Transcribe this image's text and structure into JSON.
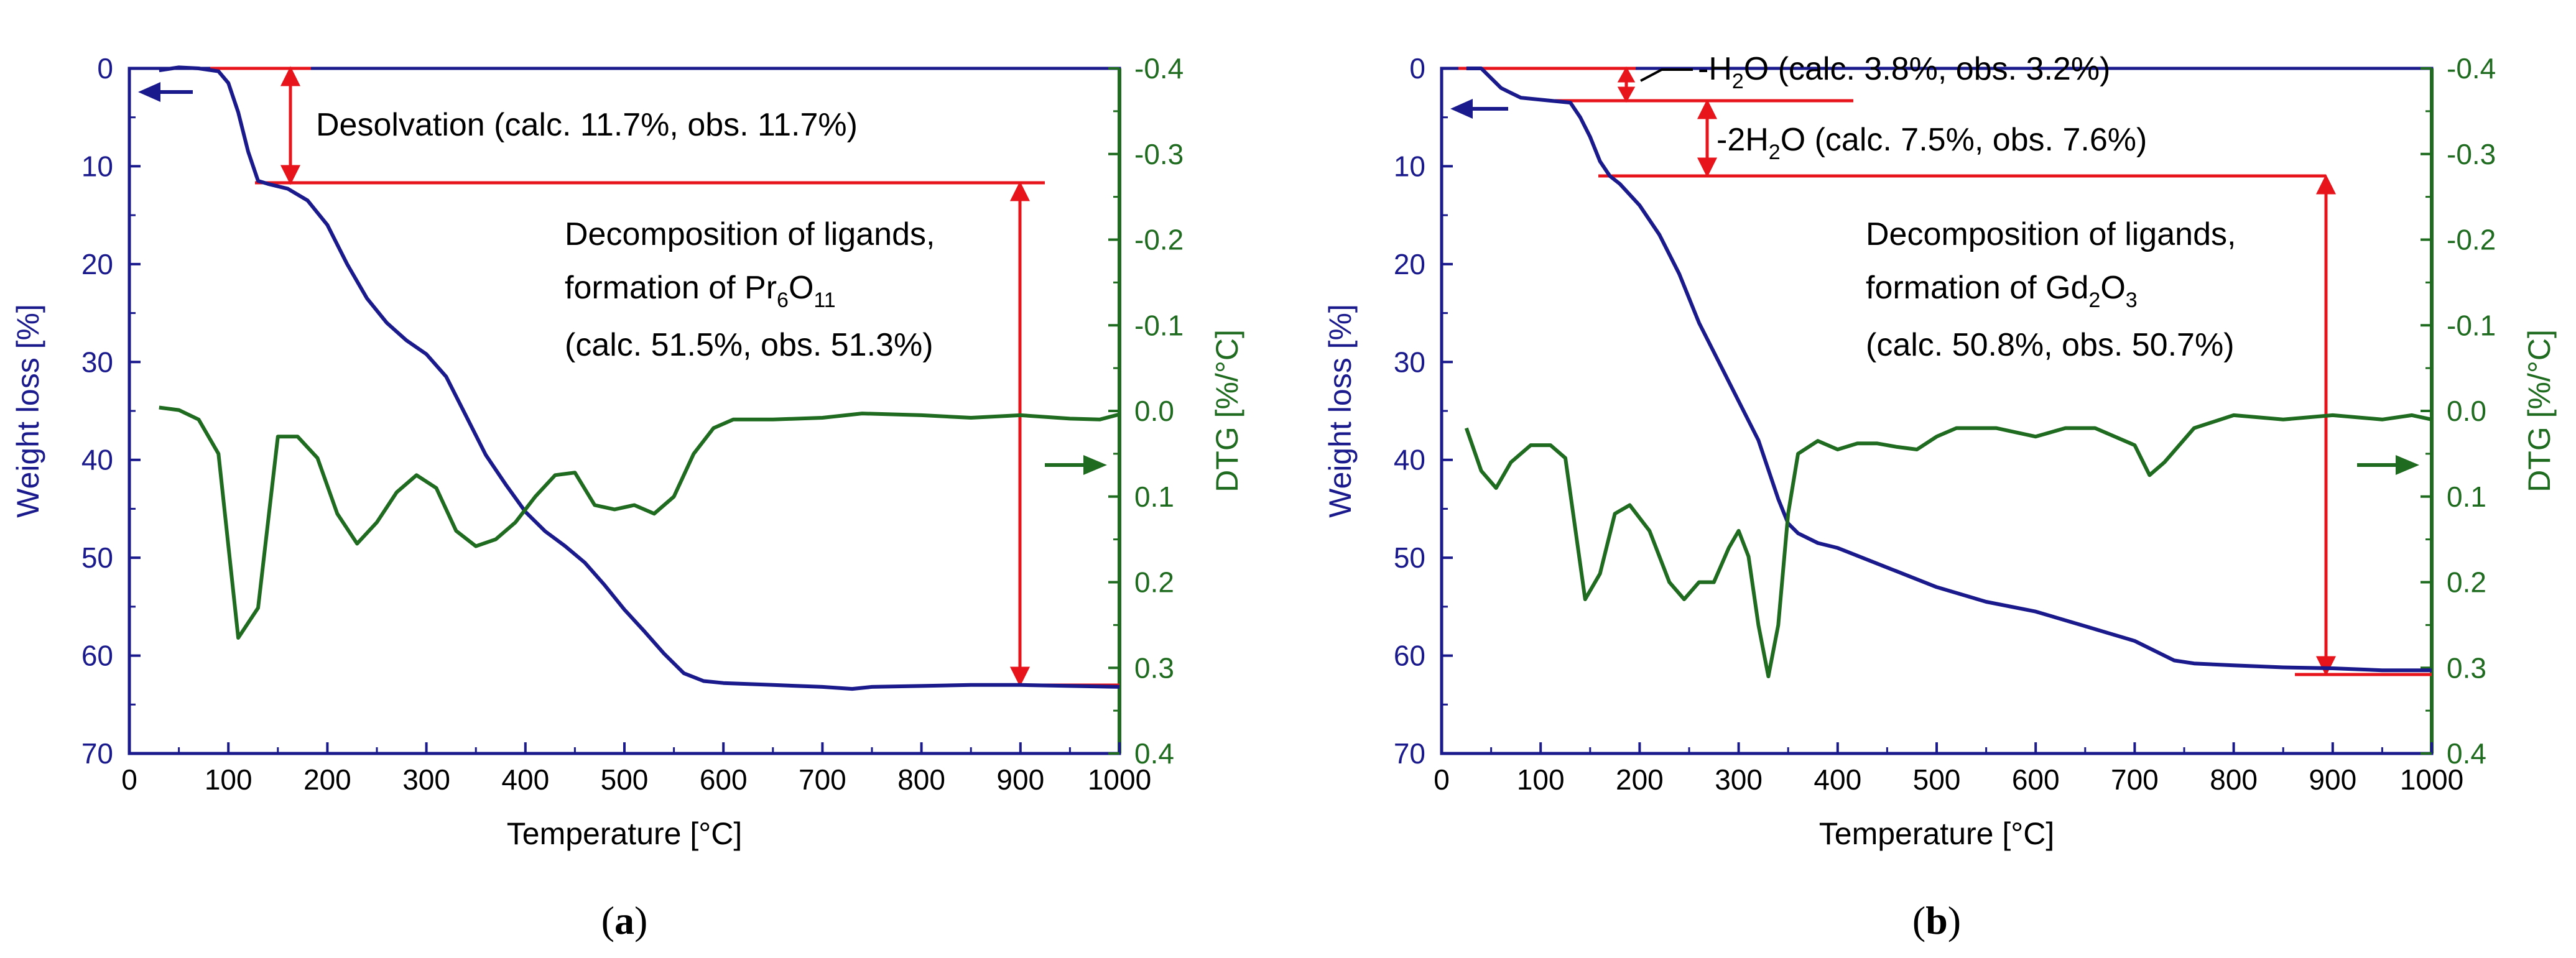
{
  "colors": {
    "tg": "#1a1a8c",
    "dtg": "#1f6b1f",
    "annot": "#e8141c",
    "frame": "#1a1a8c",
    "text": "#000000"
  },
  "chart_data": [
    {
      "type": "line",
      "panel_label": {
        "open": "(",
        "letter": "a",
        "close": ")"
      },
      "xlabel": "Temperature [°C]",
      "ylabel_left": "Weight loss [%]",
      "ylabel_right": "DTG [%/°C]",
      "xlim": [
        0,
        1000
      ],
      "ylim_left": [
        0,
        70
      ],
      "ylim_right": [
        -0.4,
        0.4
      ],
      "x_ticks": [
        "0",
        "100",
        "200",
        "300",
        "400",
        "500",
        "600",
        "700",
        "800",
        "900",
        "1000"
      ],
      "y_left_ticks": [
        "0",
        "10",
        "20",
        "30",
        "40",
        "50",
        "60",
        "70"
      ],
      "y_right_ticks": [
        "-0.4",
        "-0.3",
        "-0.2",
        "-0.1",
        "0.0",
        "0.1",
        "0.2",
        "0.3",
        "0.4"
      ],
      "series": [
        {
          "name": "Weight loss",
          "axis": "left",
          "x": [
            30,
            50,
            70,
            90,
            100,
            110,
            120,
            130,
            140,
            160,
            180,
            200,
            220,
            240,
            260,
            280,
            300,
            320,
            340,
            360,
            380,
            400,
            420,
            440,
            460,
            480,
            500,
            520,
            540,
            560,
            580,
            600,
            650,
            700,
            730,
            750,
            800,
            850,
            900,
            950,
            1000
          ],
          "values": [
            0.2,
            -0.1,
            0,
            0.3,
            1.5,
            4.5,
            8.5,
            11.5,
            11.8,
            12.3,
            13.5,
            16,
            20,
            23.5,
            26,
            27.8,
            29.2,
            31.5,
            35.5,
            39.5,
            42.5,
            45.3,
            47.3,
            48.8,
            50.5,
            52.8,
            55.3,
            57.5,
            59.8,
            61.8,
            62.6,
            62.8,
            63,
            63.2,
            63.4,
            63.2,
            63.1,
            63,
            63,
            63.1,
            63.2
          ]
        },
        {
          "name": "DTG",
          "axis": "right",
          "x": [
            30,
            50,
            70,
            90,
            110,
            130,
            150,
            170,
            190,
            210,
            230,
            250,
            270,
            290,
            310,
            330,
            350,
            370,
            390,
            410,
            430,
            450,
            470,
            490,
            510,
            530,
            550,
            570,
            590,
            610,
            650,
            700,
            740,
            800,
            850,
            900,
            950,
            980,
            1000
          ],
          "values": [
            -0.004,
            -0.001,
            0.01,
            0.05,
            0.265,
            0.23,
            0.03,
            0.03,
            0.055,
            0.12,
            0.155,
            0.13,
            0.095,
            0.075,
            0.09,
            0.14,
            0.158,
            0.15,
            0.13,
            0.1,
            0.075,
            0.072,
            0.11,
            0.115,
            0.11,
            0.12,
            0.1,
            0.05,
            0.02,
            0.01,
            0.01,
            0.008,
            0.003,
            0.005,
            0.008,
            0.005,
            0.009,
            0.01,
            0.004
          ]
        }
      ],
      "annotations": [
        {
          "text": "Desolvation (calc. 11.7%, obs. 11.7%)"
        },
        {
          "text": "Decomposition of ligands,"
        },
        {
          "text_parts": [
            "formation of Pr",
            "6",
            "O",
            "11"
          ]
        },
        {
          "text": "(calc. 51.5%, obs. 51.3%)"
        }
      ]
    },
    {
      "type": "line",
      "panel_label": {
        "open": "(",
        "letter": "b",
        "close": ")"
      },
      "xlabel": "Temperature [°C]",
      "ylabel_left": "Weight loss [%]",
      "ylabel_right": "DTG [%/°C]",
      "xlim": [
        0,
        1000
      ],
      "ylim_left": [
        0,
        70
      ],
      "ylim_right": [
        -0.4,
        0.4
      ],
      "x_ticks": [
        "0",
        "100",
        "200",
        "300",
        "400",
        "500",
        "600",
        "700",
        "800",
        "900",
        "1000"
      ],
      "y_left_ticks": [
        "0",
        "10",
        "20",
        "30",
        "40",
        "50",
        "60",
        "70"
      ],
      "y_right_ticks": [
        "-0.4",
        "-0.3",
        "-0.2",
        "-0.1",
        "0.0",
        "0.1",
        "0.2",
        "0.3",
        "0.4"
      ],
      "series": [
        {
          "name": "Weight loss",
          "axis": "left",
          "x": [
            25,
            40,
            50,
            60,
            70,
            80,
            100,
            130,
            140,
            150,
            160,
            170,
            180,
            200,
            220,
            240,
            260,
            280,
            300,
            320,
            340,
            350,
            360,
            380,
            400,
            450,
            500,
            550,
            600,
            650,
            700,
            720,
            740,
            760,
            800,
            850,
            900,
            950,
            1000
          ],
          "values": [
            0,
            0,
            1,
            2,
            2.5,
            3,
            3.2,
            3.5,
            5,
            7,
            9.5,
            11,
            11.8,
            14,
            17,
            21,
            26,
            30,
            34,
            38,
            44,
            46.5,
            47.5,
            48.5,
            49,
            51,
            53,
            54.5,
            55.5,
            57,
            58.5,
            59.5,
            60.5,
            60.8,
            61,
            61.2,
            61.3,
            61.5,
            61.5
          ]
        },
        {
          "name": "DTG",
          "axis": "right",
          "x": [
            25,
            40,
            55,
            70,
            90,
            110,
            125,
            145,
            160,
            175,
            190,
            210,
            230,
            245,
            260,
            275,
            290,
            300,
            310,
            320,
            330,
            340,
            350,
            360,
            380,
            400,
            420,
            440,
            460,
            480,
            500,
            520,
            560,
            600,
            630,
            660,
            700,
            715,
            730,
            760,
            800,
            850,
            900,
            950,
            980,
            1000
          ],
          "values": [
            0.02,
            0.07,
            0.09,
            0.06,
            0.04,
            0.04,
            0.055,
            0.22,
            0.19,
            0.12,
            0.11,
            0.14,
            0.2,
            0.22,
            0.2,
            0.2,
            0.16,
            0.14,
            0.17,
            0.25,
            0.31,
            0.25,
            0.12,
            0.05,
            0.035,
            0.045,
            0.038,
            0.038,
            0.042,
            0.045,
            0.03,
            0.02,
            0.02,
            0.03,
            0.02,
            0.02,
            0.04,
            0.075,
            0.06,
            0.02,
            0.005,
            0.01,
            0.005,
            0.01,
            0.005,
            0.01
          ]
        }
      ],
      "annotations": [
        {
          "text_parts": [
            "-H",
            "2",
            "O (calc. 3.8%, obs. 3.2%)"
          ]
        },
        {
          "text_parts": [
            "-2H",
            "2",
            "O (calc. 7.5%, obs. 7.6%)"
          ]
        },
        {
          "text": "Decomposition of ligands,"
        },
        {
          "text_parts": [
            "formation of Gd",
            "2",
            "O",
            "3"
          ]
        },
        {
          "text": "(calc. 50.8%, obs. 50.7%)"
        }
      ]
    }
  ]
}
